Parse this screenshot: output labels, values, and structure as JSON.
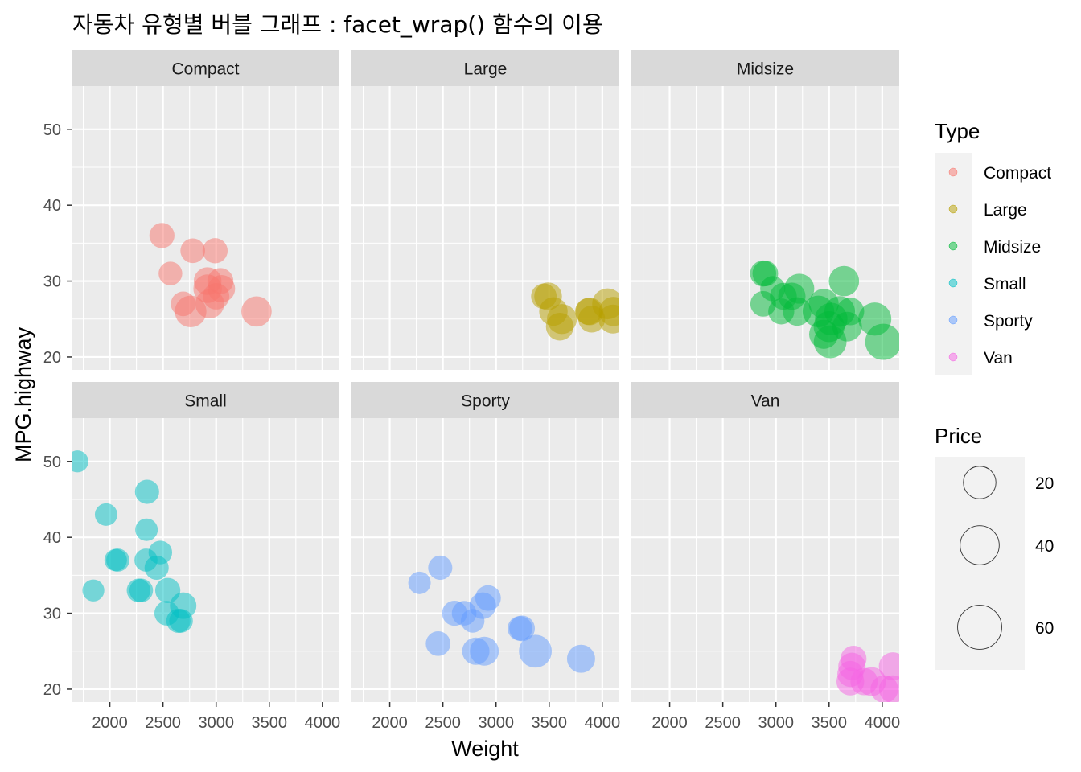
{
  "chart_data": {
    "type": "scatter",
    "title": "자동차 유형별 버블 그래프 : facet_wrap() 함수의 이용",
    "xlabel": "Weight",
    "ylabel": "MPG.highway",
    "xlim": [
      1640,
      4160
    ],
    "ylim": [
      18.3,
      55.7
    ],
    "x_ticks": [
      "2000",
      "2500",
      "3000",
      "3500",
      "4000"
    ],
    "y_ticks": [
      "20",
      "30",
      "40",
      "50"
    ],
    "grid": true,
    "legend_position": "right",
    "color_legend": {
      "title": "Type",
      "entries": [
        {
          "label": "Compact",
          "color": "#F8766D"
        },
        {
          "label": "Large",
          "color": "#B79F00"
        },
        {
          "label": "Midsize",
          "color": "#00BA38"
        },
        {
          "label": "Small",
          "color": "#00BFC4"
        },
        {
          "label": "Sporty",
          "color": "#619CFF"
        },
        {
          "label": "Van",
          "color": "#F564E3"
        }
      ]
    },
    "size_legend": {
      "title": "Price",
      "entries": [
        {
          "label": "20",
          "value": 20
        },
        {
          "label": "40",
          "value": 40
        },
        {
          "label": "60",
          "value": 60
        }
      ]
    },
    "panels": [
      {
        "name": "Compact",
        "color": "#F8766D",
        "points": [
          {
            "x": 2490,
            "y": 36,
            "price": 14
          },
          {
            "x": 2780,
            "y": 34,
            "price": 13
          },
          {
            "x": 2990,
            "y": 34,
            "price": 14
          },
          {
            "x": 2570,
            "y": 31,
            "price": 11
          },
          {
            "x": 2920,
            "y": 30,
            "price": 20
          },
          {
            "x": 3040,
            "y": 30,
            "price": 16
          },
          {
            "x": 2920,
            "y": 29,
            "price": 22
          },
          {
            "x": 3000,
            "y": 28,
            "price": 17
          },
          {
            "x": 2690,
            "y": 27,
            "price": 13
          },
          {
            "x": 2760,
            "y": 26,
            "price": 31
          },
          {
            "x": 2940,
            "y": 27,
            "price": 23
          },
          {
            "x": 3380,
            "y": 26,
            "price": 27
          },
          {
            "x": 3050,
            "y": 29,
            "price": 19
          }
        ]
      },
      {
        "name": "Large",
        "color": "#B79F00",
        "points": [
          {
            "x": 3490,
            "y": 28,
            "price": 20
          },
          {
            "x": 3450,
            "y": 28,
            "price": 15
          },
          {
            "x": 3540,
            "y": 26,
            "price": 22
          },
          {
            "x": 3620,
            "y": 25,
            "price": 26
          },
          {
            "x": 3870,
            "y": 26,
            "price": 18
          },
          {
            "x": 4050,
            "y": 27,
            "price": 29
          },
          {
            "x": 4100,
            "y": 25,
            "price": 23
          },
          {
            "x": 3880,
            "y": 26,
            "price": 20
          },
          {
            "x": 4105,
            "y": 26,
            "price": 24
          },
          {
            "x": 3900,
            "y": 25,
            "price": 18
          },
          {
            "x": 3600,
            "y": 24,
            "price": 20
          }
        ]
      },
      {
        "name": "Midsize",
        "color": "#00BA38",
        "points": [
          {
            "x": 2880,
            "y": 31,
            "price": 16
          },
          {
            "x": 2900,
            "y": 31,
            "price": 15
          },
          {
            "x": 2970,
            "y": 29,
            "price": 14
          },
          {
            "x": 2880,
            "y": 27,
            "price": 15
          },
          {
            "x": 3070,
            "y": 28,
            "price": 18
          },
          {
            "x": 3220,
            "y": 29,
            "price": 26
          },
          {
            "x": 3150,
            "y": 28,
            "price": 19
          },
          {
            "x": 3640,
            "y": 30,
            "price": 27
          },
          {
            "x": 3050,
            "y": 26,
            "price": 16
          },
          {
            "x": 3200,
            "y": 26,
            "price": 22
          },
          {
            "x": 3450,
            "y": 27,
            "price": 26
          },
          {
            "x": 3400,
            "y": 26,
            "price": 31
          },
          {
            "x": 3520,
            "y": 25,
            "price": 34
          },
          {
            "x": 3600,
            "y": 26,
            "price": 28
          },
          {
            "x": 3500,
            "y": 24,
            "price": 29
          },
          {
            "x": 3700,
            "y": 26,
            "price": 20
          },
          {
            "x": 3450,
            "y": 23,
            "price": 24
          },
          {
            "x": 3930,
            "y": 25,
            "price": 36
          },
          {
            "x": 3510,
            "y": 22,
            "price": 35
          },
          {
            "x": 3670,
            "y": 24,
            "price": 25
          },
          {
            "x": 4010,
            "y": 22,
            "price": 47
          }
        ]
      },
      {
        "name": "Small",
        "color": "#00BFC4",
        "points": [
          {
            "x": 1695,
            "y": 50,
            "price": 8
          },
          {
            "x": 2350,
            "y": 46,
            "price": 12
          },
          {
            "x": 1965,
            "y": 43,
            "price": 9
          },
          {
            "x": 2345,
            "y": 41,
            "price": 9
          },
          {
            "x": 2055,
            "y": 37,
            "price": 9
          },
          {
            "x": 2075,
            "y": 37,
            "price": 10
          },
          {
            "x": 2475,
            "y": 38,
            "price": 11
          },
          {
            "x": 2340,
            "y": 37,
            "price": 10
          },
          {
            "x": 2440,
            "y": 36,
            "price": 12
          },
          {
            "x": 1845,
            "y": 33,
            "price": 8
          },
          {
            "x": 2270,
            "y": 33,
            "price": 11
          },
          {
            "x": 2295,
            "y": 33,
            "price": 11
          },
          {
            "x": 2545,
            "y": 33,
            "price": 14
          },
          {
            "x": 2690,
            "y": 31,
            "price": 17
          },
          {
            "x": 2535,
            "y": 30,
            "price": 13
          },
          {
            "x": 2645,
            "y": 29,
            "price": 12
          },
          {
            "x": 2670,
            "y": 29,
            "price": 11
          }
        ]
      },
      {
        "name": "Sporty",
        "color": "#619CFF",
        "points": [
          {
            "x": 2475,
            "y": 36,
            "price": 12
          },
          {
            "x": 2280,
            "y": 34,
            "price": 9
          },
          {
            "x": 2925,
            "y": 32,
            "price": 15
          },
          {
            "x": 2875,
            "y": 31,
            "price": 17
          },
          {
            "x": 2610,
            "y": 30,
            "price": 14
          },
          {
            "x": 2700,
            "y": 30,
            "price": 13
          },
          {
            "x": 2780,
            "y": 29,
            "price": 11
          },
          {
            "x": 3245,
            "y": 28,
            "price": 15
          },
          {
            "x": 3225,
            "y": 28,
            "price": 13
          },
          {
            "x": 2455,
            "y": 26,
            "price": 13
          },
          {
            "x": 2810,
            "y": 25,
            "price": 19
          },
          {
            "x": 2890,
            "y": 25,
            "price": 23
          },
          {
            "x": 3370,
            "y": 25,
            "price": 35
          },
          {
            "x": 3800,
            "y": 24,
            "price": 21
          }
        ]
      },
      {
        "name": "Van",
        "color": "#F564E3",
        "points": [
          {
            "x": 3730,
            "y": 24,
            "price": 16
          },
          {
            "x": 3715,
            "y": 23,
            "price": 19
          },
          {
            "x": 4100,
            "y": 23,
            "price": 21
          },
          {
            "x": 3700,
            "y": 22,
            "price": 16
          },
          {
            "x": 3830,
            "y": 21,
            "price": 19
          },
          {
            "x": 3700,
            "y": 21,
            "price": 20
          },
          {
            "x": 4020,
            "y": 20,
            "price": 20
          },
          {
            "x": 4100,
            "y": 20,
            "price": 20
          },
          {
            "x": 3900,
            "y": 21,
            "price": 23
          }
        ]
      }
    ]
  }
}
